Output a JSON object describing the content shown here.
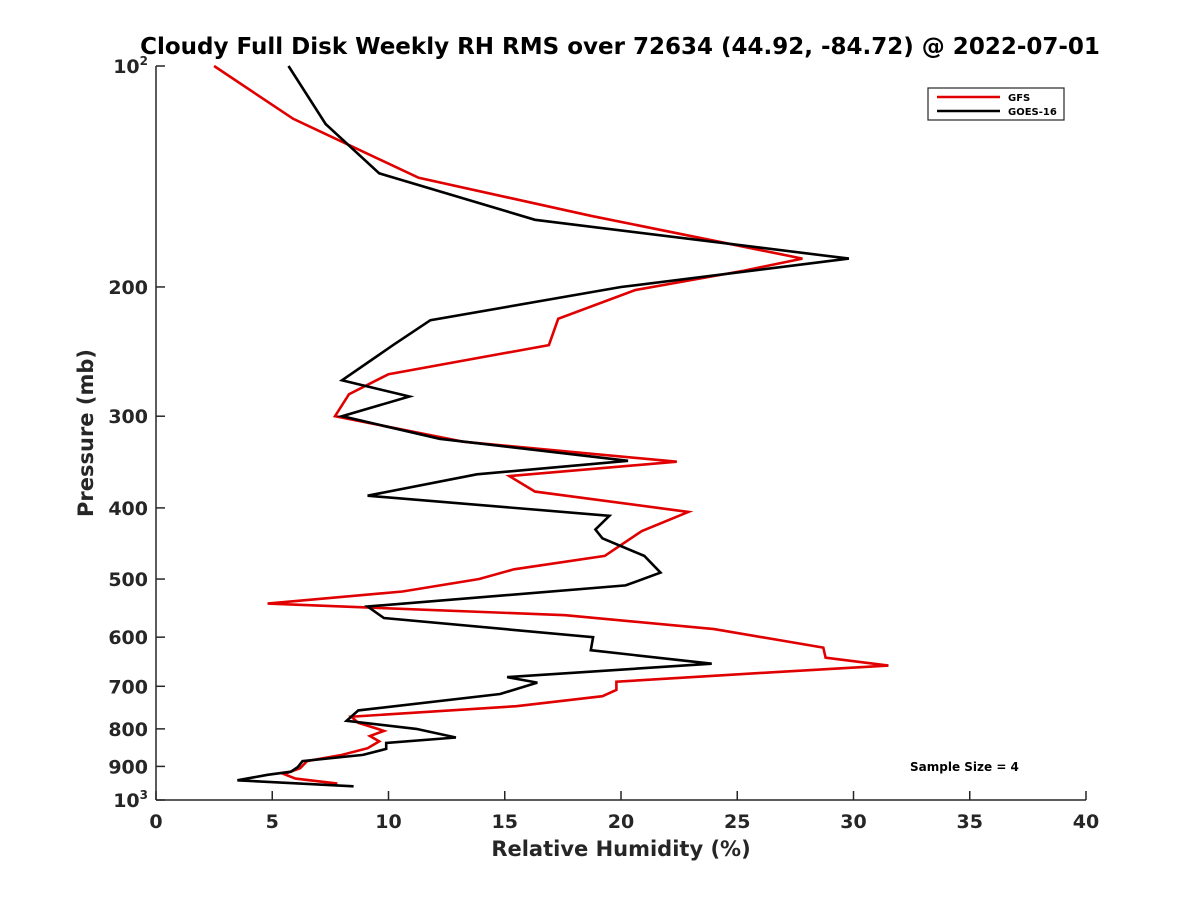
{
  "chart_data": {
    "type": "line",
    "title": "Cloudy Full Disk Weekly RH RMS over 72634 (44.92, -84.72) @ 2022-07-01",
    "xlabel": "Relative Humidity (%)",
    "ylabel": "Pressure (mb)",
    "xlim": [
      0,
      40
    ],
    "ylim": [
      100,
      1000
    ],
    "y_scale": "log",
    "y_reversed": true,
    "grid": false,
    "legend_position": "top-right",
    "x_ticks": [
      0,
      5,
      10,
      15,
      20,
      25,
      30,
      35,
      40
    ],
    "x_tick_labels": [
      "0",
      "5",
      "10",
      "15",
      "20",
      "25",
      "30",
      "35",
      "40"
    ],
    "y_ticks": [
      {
        "value": 100,
        "base": "10",
        "exp": "2"
      },
      {
        "value": 200,
        "label": "200"
      },
      {
        "value": 300,
        "label": "300"
      },
      {
        "value": 400,
        "label": "400"
      },
      {
        "value": 500,
        "label": "500"
      },
      {
        "value": 600,
        "label": "600"
      },
      {
        "value": 700,
        "label": "700"
      },
      {
        "value": 800,
        "label": "800"
      },
      {
        "value": 900,
        "label": "900"
      },
      {
        "value": 1000,
        "base": "10",
        "exp": "3"
      }
    ],
    "annotation": "Sample Size = 4",
    "series": [
      {
        "name": "GFS",
        "color": "#e00000",
        "points": [
          [
            2.5,
            100
          ],
          [
            5.9,
            118
          ],
          [
            11.3,
            142
          ],
          [
            18.7,
            160
          ],
          [
            27.8,
            183
          ],
          [
            25.3,
            190
          ],
          [
            20.6,
            202
          ],
          [
            17.3,
            221
          ],
          [
            16.9,
            240
          ],
          [
            10.0,
            263
          ],
          [
            8.3,
            280
          ],
          [
            7.7,
            300
          ],
          [
            13.2,
            325
          ],
          [
            22.4,
            346
          ],
          [
            15.2,
            362
          ],
          [
            16.3,
            380
          ],
          [
            22.9,
            405
          ],
          [
            20.9,
            430
          ],
          [
            19.3,
            465
          ],
          [
            15.4,
            485
          ],
          [
            13.9,
            500
          ],
          [
            10.6,
            520
          ],
          [
            4.8,
            540
          ],
          [
            17.6,
            560
          ],
          [
            24.0,
            585
          ],
          [
            28.7,
            620
          ],
          [
            28.8,
            640
          ],
          [
            31.5,
            656
          ],
          [
            26.5,
            670
          ],
          [
            19.8,
            690
          ],
          [
            19.8,
            708
          ],
          [
            19.2,
            722
          ],
          [
            15.5,
            745
          ],
          [
            8.4,
            770
          ],
          [
            8.7,
            785
          ],
          [
            9.8,
            805
          ],
          [
            9.2,
            818
          ],
          [
            9.6,
            832
          ],
          [
            9.1,
            850
          ],
          [
            8.0,
            868
          ],
          [
            6.5,
            885
          ],
          [
            6.2,
            905
          ],
          [
            5.5,
            922
          ],
          [
            6.0,
            935
          ],
          [
            7.8,
            950
          ]
        ]
      },
      {
        "name": "GOES-16",
        "color": "#000000",
        "points": [
          [
            5.7,
            100
          ],
          [
            7.3,
            120
          ],
          [
            9.6,
            140
          ],
          [
            16.3,
            162
          ],
          [
            29.8,
            183
          ],
          [
            20.0,
            200
          ],
          [
            11.8,
            222
          ],
          [
            10.2,
            240
          ],
          [
            8.0,
            268
          ],
          [
            10.9,
            282
          ],
          [
            8.0,
            300
          ],
          [
            12.2,
            322
          ],
          [
            20.3,
            345
          ],
          [
            13.8,
            360
          ],
          [
            9.1,
            385
          ],
          [
            19.5,
            410
          ],
          [
            18.9,
            428
          ],
          [
            19.2,
            440
          ],
          [
            21.0,
            465
          ],
          [
            21.7,
            490
          ],
          [
            20.2,
            510
          ],
          [
            9.1,
            545
          ],
          [
            9.8,
            565
          ],
          [
            18.8,
            600
          ],
          [
            18.7,
            625
          ],
          [
            23.9,
            652
          ],
          [
            15.1,
            680
          ],
          [
            16.4,
            692
          ],
          [
            14.8,
            717
          ],
          [
            8.7,
            755
          ],
          [
            8.2,
            780
          ],
          [
            11.2,
            800
          ],
          [
            12.9,
            822
          ],
          [
            9.9,
            836
          ],
          [
            9.9,
            852
          ],
          [
            8.9,
            868
          ],
          [
            6.3,
            885
          ],
          [
            6.1,
            902
          ],
          [
            5.8,
            915
          ],
          [
            4.8,
            924
          ],
          [
            3.5,
            940
          ],
          [
            8.5,
            958
          ]
        ]
      }
    ]
  }
}
